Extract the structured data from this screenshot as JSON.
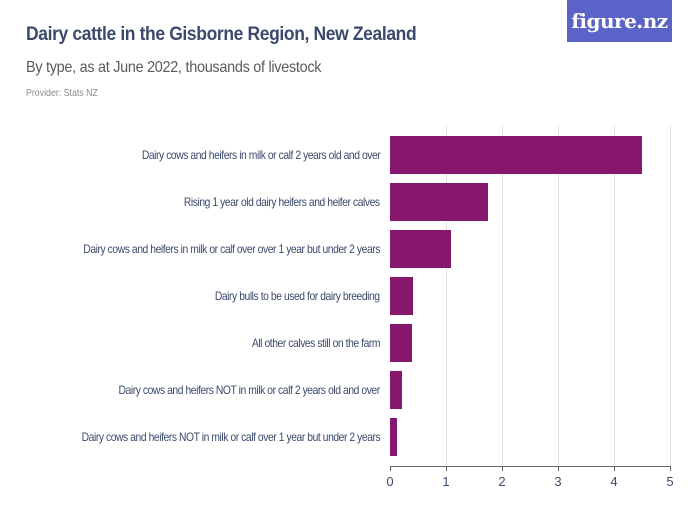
{
  "header": {
    "title": "Dairy cattle in the Gisborne Region, New Zealand",
    "subtitle": "By type, as at June 2022, thousands of livestock",
    "provider": "Provider: Stats NZ",
    "logo_text": "figure.nz"
  },
  "colors": {
    "bar": "#86176d",
    "logo_bg": "#5b63c9",
    "title": "#3b4a6b"
  },
  "chart_data": {
    "type": "bar",
    "orientation": "horizontal",
    "title": "Dairy cattle in the Gisborne Region, New Zealand",
    "subtitle": "By type, as at June 2022, thousands of livestock",
    "xlabel": "",
    "ylabel": "",
    "xlim": [
      0,
      5
    ],
    "x_ticks": [
      "0",
      "1",
      "2",
      "3",
      "4",
      "5"
    ],
    "grid": true,
    "legend": null,
    "categories": [
      "Dairy cows and heifers in milk or calf 2 years old and over",
      "Rising 1 year old dairy heifers and heifer calves",
      "Dairy cows and heifers in milk or calf over over 1 year but under 2 years",
      "Dairy bulls to be used for dairy breeding",
      "All other calves still on the farm",
      "Dairy cows and heifers NOT in milk or calf 2 years old and over",
      "Dairy cows and heifers NOT in milk or calf over 1 year but under 2 years"
    ],
    "values": [
      4.51,
      1.75,
      1.09,
      0.42,
      0.39,
      0.21,
      0.12
    ]
  }
}
